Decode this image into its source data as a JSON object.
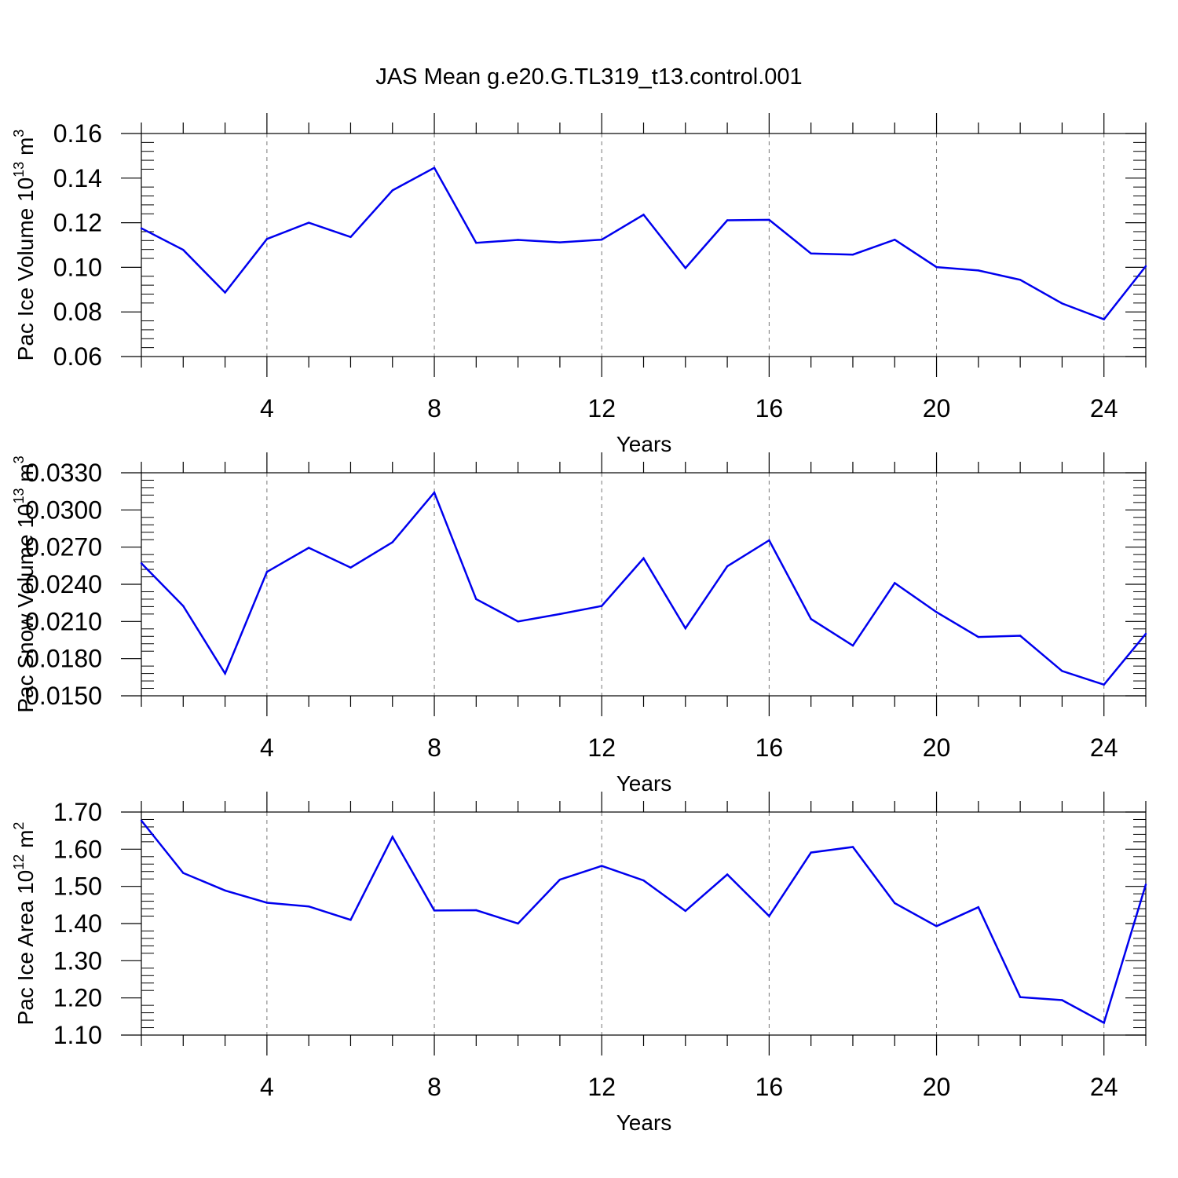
{
  "title": "JAS Mean g.e20.G.TL319_t13.control.001",
  "colors": {
    "line": "#0000ee",
    "axis": "#000000",
    "grid": "#777777"
  },
  "chart_data": [
    {
      "type": "line",
      "ylabel": "Pac Ice Volume 10",
      "ylabel_exp": "13",
      "ylabel_unit": " m",
      "ylabel_unit_exp": "3",
      "xlabel": "Years",
      "xlim": [
        1,
        25
      ],
      "ylim": [
        0.06,
        0.16
      ],
      "xticks": [
        4,
        8,
        12,
        16,
        20,
        24
      ],
      "xtick_labels": [
        "4",
        "8",
        "12",
        "16",
        "20",
        "24"
      ],
      "yticks": [
        0.06,
        0.08,
        0.1,
        0.12,
        0.14,
        0.16
      ],
      "ytick_labels": [
        "0.06",
        "0.08",
        "0.10",
        "0.12",
        "0.14",
        "0.16"
      ],
      "grid": "vertical dashed at major x ticks",
      "x": [
        1,
        2,
        3,
        4,
        5,
        6,
        7,
        8,
        9,
        10,
        11,
        12,
        13,
        14,
        15,
        16,
        17,
        18,
        19,
        20,
        21,
        22,
        23,
        24,
        25
      ],
      "values": [
        0.1175,
        0.1078,
        0.0887,
        0.1127,
        0.12,
        0.1136,
        0.1345,
        0.1446,
        0.111,
        0.1123,
        0.1112,
        0.1124,
        0.1236,
        0.0997,
        0.1211,
        0.1213,
        0.1062,
        0.1057,
        0.1124,
        0.1001,
        0.0986,
        0.0944,
        0.0838,
        0.0767,
        0.1005
      ]
    },
    {
      "type": "line",
      "ylabel": "Pac Snow Volume 10",
      "ylabel_exp": "13",
      "ylabel_unit": " m",
      "ylabel_unit_exp": "3",
      "xlabel": "Years",
      "xlim": [
        1,
        25
      ],
      "ylim": [
        0.015,
        0.033
      ],
      "xticks": [
        4,
        8,
        12,
        16,
        20,
        24
      ],
      "xtick_labels": [
        "4",
        "8",
        "12",
        "16",
        "20",
        "24"
      ],
      "yticks": [
        0.015,
        0.018,
        0.021,
        0.024,
        0.027,
        0.03,
        0.033
      ],
      "ytick_labels": [
        "0.0150",
        "0.0180",
        "0.0210",
        "0.0240",
        "0.0270",
        "0.0300",
        "0.0330"
      ],
      "grid": "vertical dashed at major x ticks",
      "x": [
        1,
        2,
        3,
        4,
        5,
        6,
        7,
        8,
        9,
        10,
        11,
        12,
        13,
        14,
        15,
        16,
        17,
        18,
        19,
        20,
        21,
        22,
        23,
        24,
        25
      ],
      "values": [
        0.0257,
        0.02225,
        0.0168,
        0.025,
        0.02695,
        0.02535,
        0.0274,
        0.0314,
        0.0228,
        0.021,
        0.0216,
        0.02225,
        0.0261,
        0.02045,
        0.02545,
        0.02755,
        0.0212,
        0.01905,
        0.0241,
        0.02175,
        0.01975,
        0.01985,
        0.017,
        0.0159,
        0.02
      ]
    },
    {
      "type": "line",
      "ylabel": "Pac Ice Area 10",
      "ylabel_exp": "12",
      "ylabel_unit": " m",
      "ylabel_unit_exp": "2",
      "xlabel": "Years",
      "xlim": [
        1,
        25
      ],
      "ylim": [
        1.1,
        1.7
      ],
      "xticks": [
        4,
        8,
        12,
        16,
        20,
        24
      ],
      "xtick_labels": [
        "4",
        "8",
        "12",
        "16",
        "20",
        "24"
      ],
      "yticks": [
        1.1,
        1.2,
        1.3,
        1.4,
        1.5,
        1.6,
        1.7
      ],
      "ytick_labels": [
        "1.10",
        "1.20",
        "1.30",
        "1.40",
        "1.50",
        "1.60",
        "1.70"
      ],
      "grid": "vertical dashed at major x ticks",
      "x": [
        1,
        2,
        3,
        4,
        5,
        6,
        7,
        8,
        9,
        10,
        11,
        12,
        13,
        14,
        15,
        16,
        17,
        18,
        19,
        20,
        21,
        22,
        23,
        24,
        25
      ],
      "values": [
        1.677,
        1.536,
        1.489,
        1.456,
        1.446,
        1.41,
        1.633,
        1.435,
        1.436,
        1.4,
        1.518,
        1.555,
        1.516,
        1.434,
        1.532,
        1.42,
        1.591,
        1.606,
        1.455,
        1.393,
        1.444,
        1.202,
        1.194,
        1.133,
        1.505
      ]
    }
  ]
}
